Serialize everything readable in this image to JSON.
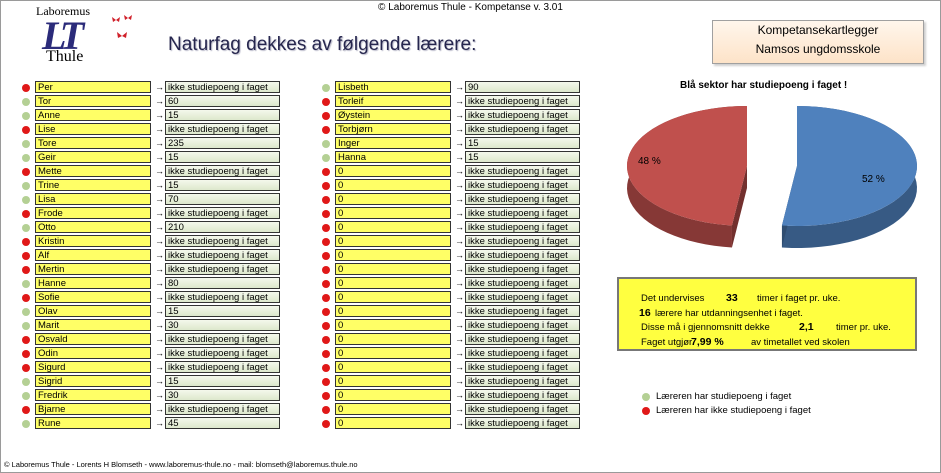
{
  "header": {
    "copyright": "© Laboremus Thule - Kompetanse  v. 3.01",
    "title": "Naturfag dekkes av følgende lærere:",
    "logo_top": "Laboremus",
    "logo_mark": "LT",
    "logo_bottom": "Thule"
  },
  "badge": {
    "line1": "Kompetansekartlegger",
    "line2": "Namsos ungdomsskole"
  },
  "teachers_left": [
    {
      "name": "Per",
      "value": "ikke studiepoeng i faget",
      "has_points": false
    },
    {
      "name": "Tor",
      "value": "60",
      "has_points": true
    },
    {
      "name": "Anne",
      "value": "15",
      "has_points": true
    },
    {
      "name": "Lise",
      "value": "ikke studiepoeng i faget",
      "has_points": false
    },
    {
      "name": "Tore",
      "value": "235",
      "has_points": true
    },
    {
      "name": "Geir",
      "value": "15",
      "has_points": true
    },
    {
      "name": "Mette",
      "value": "ikke studiepoeng i faget",
      "has_points": false
    },
    {
      "name": "Trine",
      "value": "15",
      "has_points": true
    },
    {
      "name": "Lisa",
      "value": "70",
      "has_points": true
    },
    {
      "name": "Frode",
      "value": "ikke studiepoeng i faget",
      "has_points": false
    },
    {
      "name": "Otto",
      "value": "210",
      "has_points": true
    },
    {
      "name": "Kristin",
      "value": "ikke studiepoeng i faget",
      "has_points": false
    },
    {
      "name": "Alf",
      "value": "ikke studiepoeng i faget",
      "has_points": false
    },
    {
      "name": "Mertin",
      "value": "ikke studiepoeng i faget",
      "has_points": false
    },
    {
      "name": "Hanne",
      "value": "80",
      "has_points": true
    },
    {
      "name": "Sofie",
      "value": "ikke studiepoeng i faget",
      "has_points": false
    },
    {
      "name": "Olav",
      "value": "15",
      "has_points": true
    },
    {
      "name": "Marit",
      "value": "30",
      "has_points": true
    },
    {
      "name": "Osvald",
      "value": "ikke studiepoeng i faget",
      "has_points": false
    },
    {
      "name": "Odin",
      "value": "ikke studiepoeng i faget",
      "has_points": false
    },
    {
      "name": "Sigurd",
      "value": "ikke studiepoeng i faget",
      "has_points": false
    },
    {
      "name": "Sigrid",
      "value": "15",
      "has_points": true
    },
    {
      "name": "Fredrik",
      "value": "30",
      "has_points": true
    },
    {
      "name": "Bjarne",
      "value": "ikke studiepoeng i faget",
      "has_points": false
    },
    {
      "name": "Rune",
      "value": "45",
      "has_points": true
    }
  ],
  "teachers_right": [
    {
      "name": "Lisbeth",
      "value": "90",
      "has_points": true
    },
    {
      "name": "Torleif",
      "value": "ikke studiepoeng i faget",
      "has_points": false
    },
    {
      "name": "Øystein",
      "value": "ikke studiepoeng i faget",
      "has_points": false
    },
    {
      "name": "Torbjørn",
      "value": "ikke studiepoeng i faget",
      "has_points": false
    },
    {
      "name": "Inger",
      "value": "15",
      "has_points": true
    },
    {
      "name": "Hanna",
      "value": "15",
      "has_points": true
    },
    {
      "name": "0",
      "value": "ikke studiepoeng i faget",
      "has_points": false
    },
    {
      "name": "0",
      "value": "ikke studiepoeng i faget",
      "has_points": false
    },
    {
      "name": "0",
      "value": "ikke studiepoeng i faget",
      "has_points": false
    },
    {
      "name": "0",
      "value": "ikke studiepoeng i faget",
      "has_points": false
    },
    {
      "name": "0",
      "value": "ikke studiepoeng i faget",
      "has_points": false
    },
    {
      "name": "0",
      "value": "ikke studiepoeng i faget",
      "has_points": false
    },
    {
      "name": "0",
      "value": "ikke studiepoeng i faget",
      "has_points": false
    },
    {
      "name": "0",
      "value": "ikke studiepoeng i faget",
      "has_points": false
    },
    {
      "name": "0",
      "value": "ikke studiepoeng i faget",
      "has_points": false
    },
    {
      "name": "0",
      "value": "ikke studiepoeng i faget",
      "has_points": false
    },
    {
      "name": "0",
      "value": "ikke studiepoeng i faget",
      "has_points": false
    },
    {
      "name": "0",
      "value": "ikke studiepoeng i faget",
      "has_points": false
    },
    {
      "name": "0",
      "value": "ikke studiepoeng i faget",
      "has_points": false
    },
    {
      "name": "0",
      "value": "ikke studiepoeng i faget",
      "has_points": false
    },
    {
      "name": "0",
      "value": "ikke studiepoeng i faget",
      "has_points": false
    },
    {
      "name": "0",
      "value": "ikke studiepoeng i faget",
      "has_points": false
    },
    {
      "name": "0",
      "value": "ikke studiepoeng i faget",
      "has_points": false
    },
    {
      "name": "0",
      "value": "ikke studiepoeng i faget",
      "has_points": false
    },
    {
      "name": "0",
      "value": "ikke studiepoeng i faget",
      "has_points": false
    }
  ],
  "arrow_glyph": "→",
  "chart_data": {
    "type": "pie",
    "title": "Blå sektor har studiepoeng i faget !",
    "slices": [
      {
        "label": "52 %",
        "value": 52,
        "color": "#4f81bd"
      },
      {
        "label": "48 %",
        "value": 48,
        "color": "#c0504d"
      }
    ]
  },
  "info": {
    "l1_pre": "Det undervises",
    "l1_val": "33",
    "l1_post": "timer i faget pr. uke.",
    "l2_val": "16",
    "l2_post": "lærere har utdanningsenhet i faget.",
    "l3_pre": "Disse må i gjennomsnitt dekke",
    "l3_val": "2,1",
    "l3_post": "timer pr. uke.",
    "l4_pre": "Faget utgjør",
    "l4_val": "7,99 %",
    "l4_post": "av timetallet ved skolen"
  },
  "legend": {
    "green": "Læreren har studiepoeng i faget",
    "red": "Læreren har ikke studiepoeng i faget"
  },
  "footer": "© Laboremus Thule - Lorents H Blomseth - www.laboremus-thule.no - mail: blomseth@laboremus.thule.no"
}
